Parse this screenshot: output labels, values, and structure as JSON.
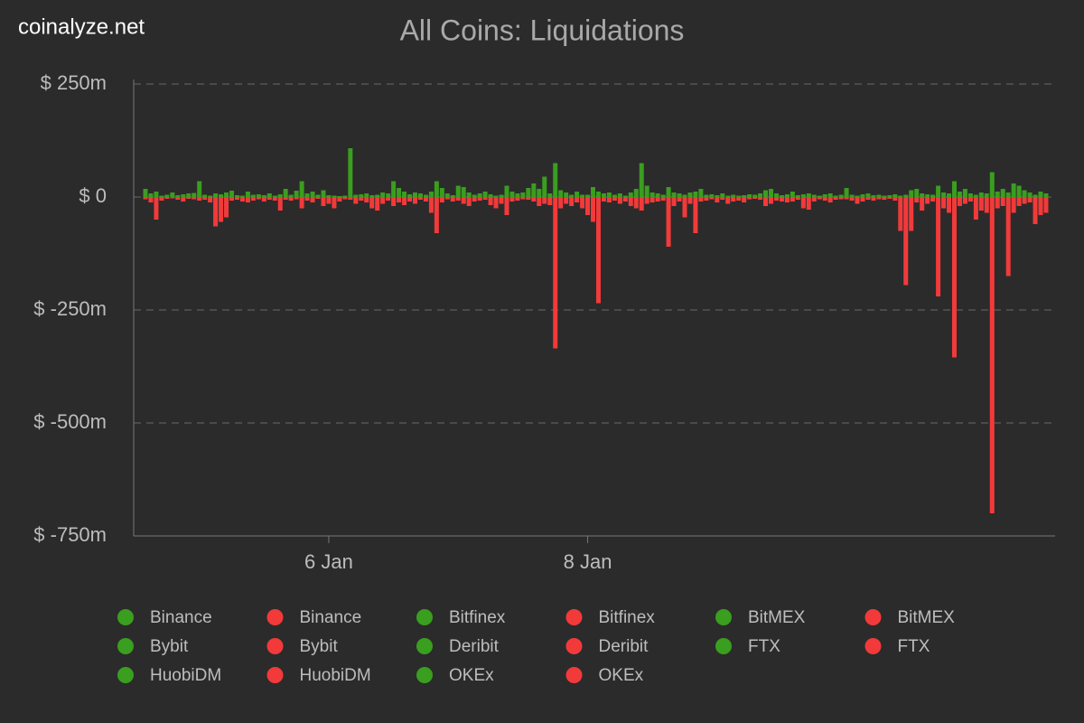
{
  "site": "coinalyze.net",
  "chart_data": {
    "type": "bar",
    "title": "All Coins: Liquidations",
    "categories": [
      null,
      null,
      null,
      null,
      null,
      null,
      null,
      null,
      null,
      null,
      null,
      null,
      null,
      null,
      null,
      null,
      null,
      null,
      null,
      null,
      null,
      null,
      null,
      null,
      null,
      null,
      null,
      null,
      null,
      null,
      null,
      null,
      null,
      null,
      "6 Jan",
      null,
      null,
      null,
      null,
      null,
      null,
      null,
      null,
      null,
      null,
      null,
      null,
      null,
      null,
      null,
      null,
      null,
      null,
      null,
      null,
      null,
      null,
      null,
      null,
      null,
      null,
      null,
      null,
      null,
      null,
      null,
      null,
      null,
      null,
      null,
      null,
      null,
      null,
      null,
      null,
      null,
      null,
      null,
      null,
      null,
      null,
      null,
      "8 Jan",
      null,
      null,
      null,
      null,
      null,
      null,
      null,
      null,
      null,
      null,
      null,
      null,
      null,
      null,
      null,
      null,
      null,
      null,
      null,
      null,
      null,
      null,
      null,
      null,
      null,
      null,
      null,
      null,
      null,
      null,
      null,
      null,
      null,
      null,
      null,
      null,
      null,
      null,
      null,
      null,
      null,
      null,
      null,
      null,
      null,
      null,
      null,
      null,
      null,
      null,
      null,
      null,
      null,
      null,
      null,
      null,
      null,
      null,
      null,
      null,
      null,
      null,
      null,
      null,
      null,
      null,
      null,
      null,
      null,
      null,
      null,
      null,
      null,
      null,
      null,
      null,
      null,
      null,
      null,
      null,
      null,
      null,
      null,
      null,
      null
    ],
    "series": [
      {
        "color": "#3a9e1f",
        "values": [
          18,
          8,
          12,
          3,
          5,
          10,
          4,
          6,
          8,
          9,
          35,
          5,
          3,
          8,
          6,
          10,
          14,
          4,
          3,
          12,
          5,
          6,
          4,
          8,
          3,
          6,
          18,
          5,
          14,
          35,
          8,
          12,
          5,
          15,
          4,
          3,
          2,
          3,
          108,
          5,
          6,
          8,
          4,
          5,
          10,
          8,
          35,
          20,
          12,
          6,
          10,
          8,
          5,
          12,
          35,
          20,
          8,
          4,
          25,
          22,
          10,
          5,
          8,
          12,
          6,
          3,
          5,
          25,
          12,
          8,
          10,
          20,
          30,
          18,
          45,
          8,
          75,
          15,
          10,
          5,
          12,
          5,
          5,
          22,
          12,
          8,
          10,
          5,
          8,
          3,
          10,
          18,
          75,
          25,
          10,
          8,
          5,
          22,
          10,
          8,
          5,
          10,
          12,
          18,
          5,
          6,
          4,
          8,
          3,
          5,
          3,
          4,
          6,
          5,
          8,
          15,
          18,
          8,
          4,
          6,
          12,
          4,
          6,
          8,
          5,
          3,
          6,
          8,
          3,
          5,
          20,
          5,
          3,
          6,
          8,
          4,
          5,
          3,
          4,
          6,
          3,
          5,
          15,
          18,
          8,
          6,
          5,
          25,
          10,
          8,
          35,
          12,
          18,
          8,
          5,
          10,
          8,
          55,
          12,
          18,
          10,
          30,
          25,
          15,
          10,
          5,
          12,
          8
        ]
      },
      {
        "color": "#f23a3a",
        "values": [
          -5,
          -12,
          -50,
          -8,
          -4,
          -3,
          -6,
          -10,
          -4,
          -5,
          -8,
          -6,
          -12,
          -65,
          -55,
          -45,
          -8,
          -6,
          -10,
          -12,
          -8,
          -5,
          -10,
          -6,
          -8,
          -30,
          -6,
          -8,
          -5,
          -25,
          -8,
          -12,
          -4,
          -20,
          -15,
          -25,
          -10,
          -5,
          -6,
          -15,
          -8,
          -12,
          -25,
          -30,
          -15,
          -8,
          -20,
          -12,
          -18,
          -10,
          -15,
          -6,
          -10,
          -35,
          -80,
          -12,
          -5,
          -10,
          -8,
          -15,
          -20,
          -10,
          -8,
          -6,
          -18,
          -25,
          -15,
          -40,
          -10,
          -8,
          -5,
          -6,
          -10,
          -20,
          -15,
          -18,
          -335,
          -25,
          -15,
          -20,
          -12,
          -25,
          -40,
          -55,
          -235,
          -10,
          -12,
          -8,
          -15,
          -10,
          -20,
          -25,
          -30,
          -15,
          -12,
          -10,
          -8,
          -110,
          -20,
          -10,
          -45,
          -15,
          -80,
          -10,
          -8,
          -5,
          -12,
          -6,
          -15,
          -10,
          -8,
          -12,
          -5,
          -4,
          -6,
          -20,
          -15,
          -8,
          -10,
          -12,
          -10,
          -6,
          -25,
          -28,
          -10,
          -5,
          -8,
          -12,
          -6,
          -5,
          -5,
          -8,
          -15,
          -10,
          -6,
          -8,
          -5,
          -6,
          -4,
          -8,
          -75,
          -195,
          -75,
          -12,
          -30,
          -15,
          -10,
          -220,
          -25,
          -35,
          -355,
          -20,
          -15,
          -10,
          -50,
          -30,
          -35,
          -700,
          -25,
          -20,
          -175,
          -35,
          -20,
          -15,
          -12,
          -60,
          -40,
          -35
        ]
      }
    ],
    "legend": [
      {
        "name": "Binance",
        "color": "#3a9e1f"
      },
      {
        "name": "Binance",
        "color": "#f23a3a"
      },
      {
        "name": "Bitfinex",
        "color": "#3a9e1f"
      },
      {
        "name": "Bitfinex",
        "color": "#f23a3a"
      },
      {
        "name": "BitMEX",
        "color": "#3a9e1f"
      },
      {
        "name": "BitMEX",
        "color": "#f23a3a"
      },
      {
        "name": "Bybit",
        "color": "#3a9e1f"
      },
      {
        "name": "Bybit",
        "color": "#f23a3a"
      },
      {
        "name": "Deribit",
        "color": "#3a9e1f"
      },
      {
        "name": "Deribit",
        "color": "#f23a3a"
      },
      {
        "name": "FTX",
        "color": "#3a9e1f"
      },
      {
        "name": "FTX",
        "color": "#f23a3a"
      },
      {
        "name": "HuobiDM",
        "color": "#3a9e1f"
      },
      {
        "name": "HuobiDM",
        "color": "#f23a3a"
      },
      {
        "name": "OKEx",
        "color": "#3a9e1f"
      },
      {
        "name": "OKEx",
        "color": "#f23a3a"
      }
    ],
    "ylim": [
      -750,
      250
    ],
    "yticks": [
      {
        "value": 250,
        "label": "$ 250m"
      },
      {
        "value": 0,
        "label": "$ 0"
      },
      {
        "value": -250,
        "label": "$ -250m"
      },
      {
        "value": -500,
        "label": "$ -500m"
      },
      {
        "value": -750,
        "label": "$ -750m"
      }
    ],
    "grid": true
  }
}
